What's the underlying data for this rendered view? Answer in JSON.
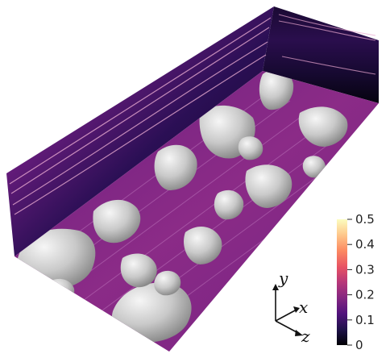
{
  "figure": {
    "colorbar": {
      "ticks": [
        "0.5",
        "0.4",
        "0.3",
        "0.2",
        "0.1",
        "0"
      ],
      "colormap": "magma",
      "stops": [
        "#000004",
        "#1d1147",
        "#51127c",
        "#822681",
        "#b73779",
        "#e75263",
        "#fc8961",
        "#fec488",
        "#fcfdbf"
      ]
    },
    "axes": {
      "y": "y",
      "x": "x",
      "z": "z"
    },
    "palette": {
      "floor": "#8a2a87",
      "wall_dark": "#120a2e",
      "wall_mid": "#5a1a78",
      "wall_bright": "#b23a96",
      "streak": "#f5b9d6",
      "blob_light": "#eeeeee",
      "blob_mid": "#bdbdbd",
      "blob_dark": "#6e6e6e"
    }
  }
}
